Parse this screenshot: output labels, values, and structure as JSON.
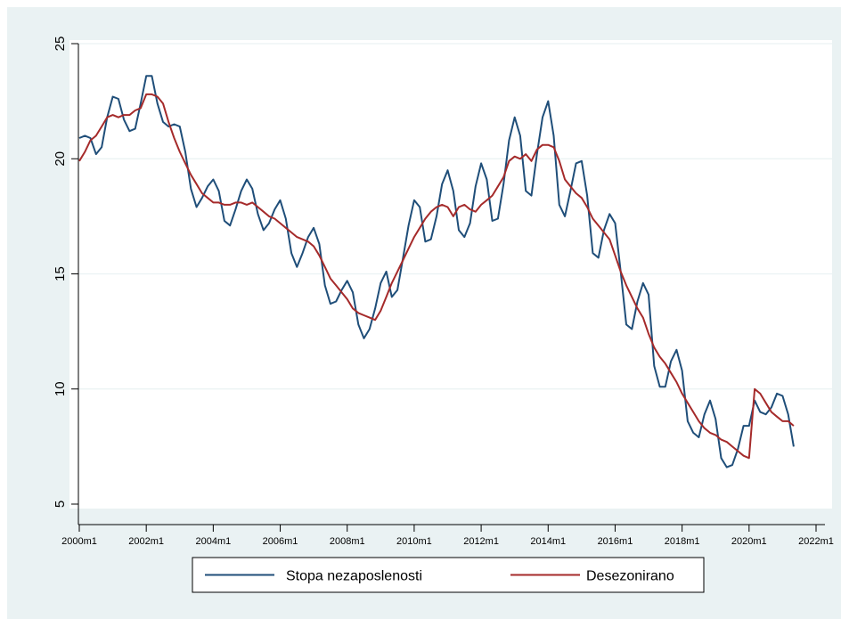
{
  "chart_data": {
    "type": "line",
    "title": "",
    "xlabel": "",
    "ylabel": "",
    "x_ticks": [
      "2000m1",
      "2002m1",
      "2004m1",
      "2006m1",
      "2008m1",
      "2010m1",
      "2012m1",
      "2014m1",
      "2016m1",
      "2018m1",
      "2020m1",
      "2022m1"
    ],
    "y_ticks": [
      "5",
      "10",
      "15",
      "20",
      "25"
    ],
    "xlim": [
      "2000m1",
      "2022m1"
    ],
    "ylim": [
      5,
      25
    ],
    "grid": "horizontal",
    "legend_position": "bottom",
    "series": [
      {
        "name": "Stopa nezaposlenosti",
        "color": "#1f4e79",
        "points": [
          [
            "2000m1",
            20.9
          ],
          [
            "2000m3",
            21.0
          ],
          [
            "2000m5",
            20.9
          ],
          [
            "2000m7",
            20.2
          ],
          [
            "2000m9",
            20.5
          ],
          [
            "2000m11",
            21.8
          ],
          [
            "2001m1",
            22.7
          ],
          [
            "2001m3",
            22.6
          ],
          [
            "2001m5",
            21.7
          ],
          [
            "2001m7",
            21.2
          ],
          [
            "2001m9",
            21.3
          ],
          [
            "2001m11",
            22.4
          ],
          [
            "2002m1",
            23.6
          ],
          [
            "2002m3",
            23.6
          ],
          [
            "2002m5",
            22.4
          ],
          [
            "2002m7",
            21.6
          ],
          [
            "2002m9",
            21.4
          ],
          [
            "2002m11",
            21.5
          ],
          [
            "2003m1",
            21.4
          ],
          [
            "2003m3",
            20.3
          ],
          [
            "2003m5",
            18.7
          ],
          [
            "2003m7",
            17.9
          ],
          [
            "2003m9",
            18.3
          ],
          [
            "2003m11",
            18.8
          ],
          [
            "2004m1",
            19.1
          ],
          [
            "2004m3",
            18.6
          ],
          [
            "2004m5",
            17.3
          ],
          [
            "2004m7",
            17.1
          ],
          [
            "2004m9",
            17.8
          ],
          [
            "2004m11",
            18.6
          ],
          [
            "2005m1",
            19.1
          ],
          [
            "2005m3",
            18.7
          ],
          [
            "2005m5",
            17.6
          ],
          [
            "2005m7",
            16.9
          ],
          [
            "2005m9",
            17.2
          ],
          [
            "2005m11",
            17.8
          ],
          [
            "2006m1",
            18.2
          ],
          [
            "2006m3",
            17.4
          ],
          [
            "2006m5",
            15.9
          ],
          [
            "2006m7",
            15.3
          ],
          [
            "2006m9",
            15.9
          ],
          [
            "2006m11",
            16.6
          ],
          [
            "2007m1",
            17.0
          ],
          [
            "2007m3",
            16.3
          ],
          [
            "2007m5",
            14.5
          ],
          [
            "2007m7",
            13.7
          ],
          [
            "2007m9",
            13.8
          ],
          [
            "2007m11",
            14.3
          ],
          [
            "2008m1",
            14.7
          ],
          [
            "2008m3",
            14.2
          ],
          [
            "2008m5",
            12.8
          ],
          [
            "2008m7",
            12.2
          ],
          [
            "2008m9",
            12.6
          ],
          [
            "2008m11",
            13.5
          ],
          [
            "2009m1",
            14.6
          ],
          [
            "2009m3",
            15.1
          ],
          [
            "2009m5",
            14.0
          ],
          [
            "2009m7",
            14.3
          ],
          [
            "2009m9",
            15.7
          ],
          [
            "2009m11",
            17.1
          ],
          [
            "2010m1",
            18.2
          ],
          [
            "2010m3",
            17.9
          ],
          [
            "2010m5",
            16.4
          ],
          [
            "2010m7",
            16.5
          ],
          [
            "2010m9",
            17.5
          ],
          [
            "2010m11",
            18.9
          ],
          [
            "2011m1",
            19.5
          ],
          [
            "2011m3",
            18.6
          ],
          [
            "2011m5",
            16.9
          ],
          [
            "2011m7",
            16.6
          ],
          [
            "2011m9",
            17.2
          ],
          [
            "2011m11",
            18.8
          ],
          [
            "2012m1",
            19.8
          ],
          [
            "2012m3",
            19.1
          ],
          [
            "2012m5",
            17.3
          ],
          [
            "2012m7",
            17.4
          ],
          [
            "2012m9",
            18.9
          ],
          [
            "2012m11",
            20.8
          ],
          [
            "2013m1",
            21.8
          ],
          [
            "2013m3",
            21.0
          ],
          [
            "2013m5",
            18.6
          ],
          [
            "2013m7",
            18.4
          ],
          [
            "2013m9",
            20.2
          ],
          [
            "2013m11",
            21.8
          ],
          [
            "2014m1",
            22.5
          ],
          [
            "2014m3",
            21.0
          ],
          [
            "2014m5",
            18.0
          ],
          [
            "2014m7",
            17.5
          ],
          [
            "2014m9",
            18.6
          ],
          [
            "2014m11",
            19.8
          ],
          [
            "2015m1",
            19.9
          ],
          [
            "2015m3",
            18.4
          ],
          [
            "2015m5",
            15.9
          ],
          [
            "2015m7",
            15.7
          ],
          [
            "2015m9",
            16.9
          ],
          [
            "2015m11",
            17.6
          ],
          [
            "2016m1",
            17.2
          ],
          [
            "2016m3",
            15.1
          ],
          [
            "2016m5",
            12.8
          ],
          [
            "2016m7",
            12.6
          ],
          [
            "2016m9",
            13.8
          ],
          [
            "2016m11",
            14.6
          ],
          [
            "2017m1",
            14.1
          ],
          [
            "2017m3",
            11.0
          ],
          [
            "2017m5",
            10.1
          ],
          [
            "2017m7",
            10.1
          ],
          [
            "2017m9",
            11.2
          ],
          [
            "2017m11",
            11.7
          ],
          [
            "2018m1",
            10.8
          ],
          [
            "2018m3",
            8.6
          ],
          [
            "2018m5",
            8.1
          ],
          [
            "2018m7",
            7.9
          ],
          [
            "2018m9",
            8.9
          ],
          [
            "2018m11",
            9.5
          ],
          [
            "2019m1",
            8.7
          ],
          [
            "2019m3",
            7.0
          ],
          [
            "2019m5",
            6.6
          ],
          [
            "2019m7",
            6.7
          ],
          [
            "2019m9",
            7.4
          ],
          [
            "2019m11",
            8.4
          ],
          [
            "2020m1",
            8.4
          ],
          [
            "2020m3",
            9.5
          ],
          [
            "2020m5",
            9.0
          ],
          [
            "2020m7",
            8.9
          ],
          [
            "2020m9",
            9.2
          ],
          [
            "2020m11",
            9.8
          ],
          [
            "2021m1",
            9.7
          ],
          [
            "2021m3",
            8.9
          ],
          [
            "2021m5",
            7.5
          ]
        ]
      },
      {
        "name": "Desezonirano",
        "color": "#a52a2a",
        "points": [
          [
            "2000m1",
            19.9
          ],
          [
            "2000m3",
            20.3
          ],
          [
            "2000m5",
            20.8
          ],
          [
            "2000m7",
            21.0
          ],
          [
            "2000m9",
            21.4
          ],
          [
            "2000m11",
            21.8
          ],
          [
            "2001m1",
            21.9
          ],
          [
            "2001m3",
            21.8
          ],
          [
            "2001m5",
            21.9
          ],
          [
            "2001m7",
            21.9
          ],
          [
            "2001m9",
            22.1
          ],
          [
            "2001m11",
            22.2
          ],
          [
            "2002m1",
            22.8
          ],
          [
            "2002m3",
            22.8
          ],
          [
            "2002m5",
            22.7
          ],
          [
            "2002m7",
            22.4
          ],
          [
            "2002m9",
            21.6
          ],
          [
            "2002m11",
            20.9
          ],
          [
            "2003m1",
            20.3
          ],
          [
            "2003m3",
            19.8
          ],
          [
            "2003m5",
            19.3
          ],
          [
            "2003m7",
            18.9
          ],
          [
            "2003m9",
            18.5
          ],
          [
            "2003m11",
            18.3
          ],
          [
            "2004m1",
            18.1
          ],
          [
            "2004m3",
            18.1
          ],
          [
            "2004m5",
            18.0
          ],
          [
            "2004m7",
            18.0
          ],
          [
            "2004m9",
            18.1
          ],
          [
            "2004m11",
            18.1
          ],
          [
            "2005m1",
            18.0
          ],
          [
            "2005m3",
            18.1
          ],
          [
            "2005m5",
            17.9
          ],
          [
            "2005m7",
            17.7
          ],
          [
            "2005m9",
            17.5
          ],
          [
            "2005m11",
            17.4
          ],
          [
            "2006m1",
            17.2
          ],
          [
            "2006m3",
            17.0
          ],
          [
            "2006m5",
            16.8
          ],
          [
            "2006m7",
            16.6
          ],
          [
            "2006m9",
            16.5
          ],
          [
            "2006m11",
            16.4
          ],
          [
            "2007m1",
            16.2
          ],
          [
            "2007m3",
            15.8
          ],
          [
            "2007m5",
            15.3
          ],
          [
            "2007m7",
            14.8
          ],
          [
            "2007m9",
            14.5
          ],
          [
            "2007m11",
            14.2
          ],
          [
            "2008m1",
            13.9
          ],
          [
            "2008m3",
            13.5
          ],
          [
            "2008m5",
            13.3
          ],
          [
            "2008m7",
            13.2
          ],
          [
            "2008m9",
            13.1
          ],
          [
            "2008m11",
            13.0
          ],
          [
            "2009m1",
            13.4
          ],
          [
            "2009m3",
            14.0
          ],
          [
            "2009m5",
            14.6
          ],
          [
            "2009m7",
            15.1
          ],
          [
            "2009m9",
            15.6
          ],
          [
            "2009m11",
            16.1
          ],
          [
            "2010m1",
            16.6
          ],
          [
            "2010m3",
            17.0
          ],
          [
            "2010m5",
            17.4
          ],
          [
            "2010m7",
            17.7
          ],
          [
            "2010m9",
            17.9
          ],
          [
            "2010m11",
            18.0
          ],
          [
            "2011m1",
            17.9
          ],
          [
            "2011m3",
            17.5
          ],
          [
            "2011m5",
            17.9
          ],
          [
            "2011m7",
            18.0
          ],
          [
            "2011m9",
            17.8
          ],
          [
            "2011m11",
            17.7
          ],
          [
            "2012m1",
            18.0
          ],
          [
            "2012m3",
            18.2
          ],
          [
            "2012m5",
            18.4
          ],
          [
            "2012m7",
            18.8
          ],
          [
            "2012m9",
            19.2
          ],
          [
            "2012m11",
            19.9
          ],
          [
            "2013m1",
            20.1
          ],
          [
            "2013m3",
            20.0
          ],
          [
            "2013m5",
            20.2
          ],
          [
            "2013m7",
            19.9
          ],
          [
            "2013m9",
            20.4
          ],
          [
            "2013m11",
            20.6
          ],
          [
            "2014m1",
            20.6
          ],
          [
            "2014m3",
            20.5
          ],
          [
            "2014m5",
            19.9
          ],
          [
            "2014m7",
            19.1
          ],
          [
            "2014m9",
            18.8
          ],
          [
            "2014m11",
            18.5
          ],
          [
            "2015m1",
            18.3
          ],
          [
            "2015m3",
            17.9
          ],
          [
            "2015m5",
            17.4
          ],
          [
            "2015m7",
            17.1
          ],
          [
            "2015m9",
            16.8
          ],
          [
            "2015m11",
            16.5
          ],
          [
            "2016m1",
            15.8
          ],
          [
            "2016m3",
            15.1
          ],
          [
            "2016m5",
            14.5
          ],
          [
            "2016m7",
            14.0
          ],
          [
            "2016m9",
            13.5
          ],
          [
            "2016m11",
            13.1
          ],
          [
            "2017m1",
            12.4
          ],
          [
            "2017m3",
            11.8
          ],
          [
            "2017m5",
            11.4
          ],
          [
            "2017m7",
            11.1
          ],
          [
            "2017m9",
            10.7
          ],
          [
            "2017m11",
            10.3
          ],
          [
            "2018m1",
            9.8
          ],
          [
            "2018m3",
            9.4
          ],
          [
            "2018m5",
            9.0
          ],
          [
            "2018m7",
            8.6
          ],
          [
            "2018m9",
            8.3
          ],
          [
            "2018m11",
            8.1
          ],
          [
            "2019m1",
            8.0
          ],
          [
            "2019m3",
            7.8
          ],
          [
            "2019m5",
            7.7
          ],
          [
            "2019m7",
            7.5
          ],
          [
            "2019m9",
            7.3
          ],
          [
            "2019m11",
            7.1
          ],
          [
            "2020m1",
            7.0
          ],
          [
            "2020m3",
            10.0
          ],
          [
            "2020m5",
            9.8
          ],
          [
            "2020m7",
            9.4
          ],
          [
            "2020m9",
            9.0
          ],
          [
            "2020m11",
            8.8
          ],
          [
            "2021m1",
            8.6
          ],
          [
            "2021m3",
            8.6
          ],
          [
            "2021m5",
            8.4
          ]
        ]
      }
    ]
  }
}
